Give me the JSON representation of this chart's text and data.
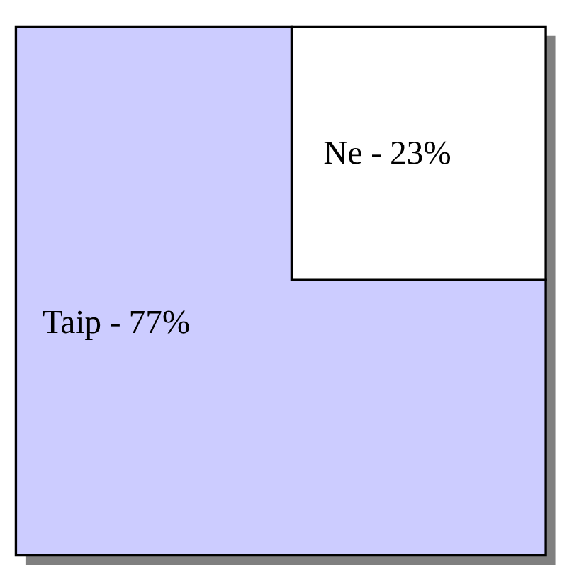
{
  "chart_data": {
    "type": "other",
    "categories": [
      "Taip -",
      "Ne -"
    ],
    "values": [
      77,
      23
    ],
    "value_labels": [
      "77%",
      "23%"
    ],
    "colors": [
      "#ccccff",
      "#ffffff"
    ]
  }
}
